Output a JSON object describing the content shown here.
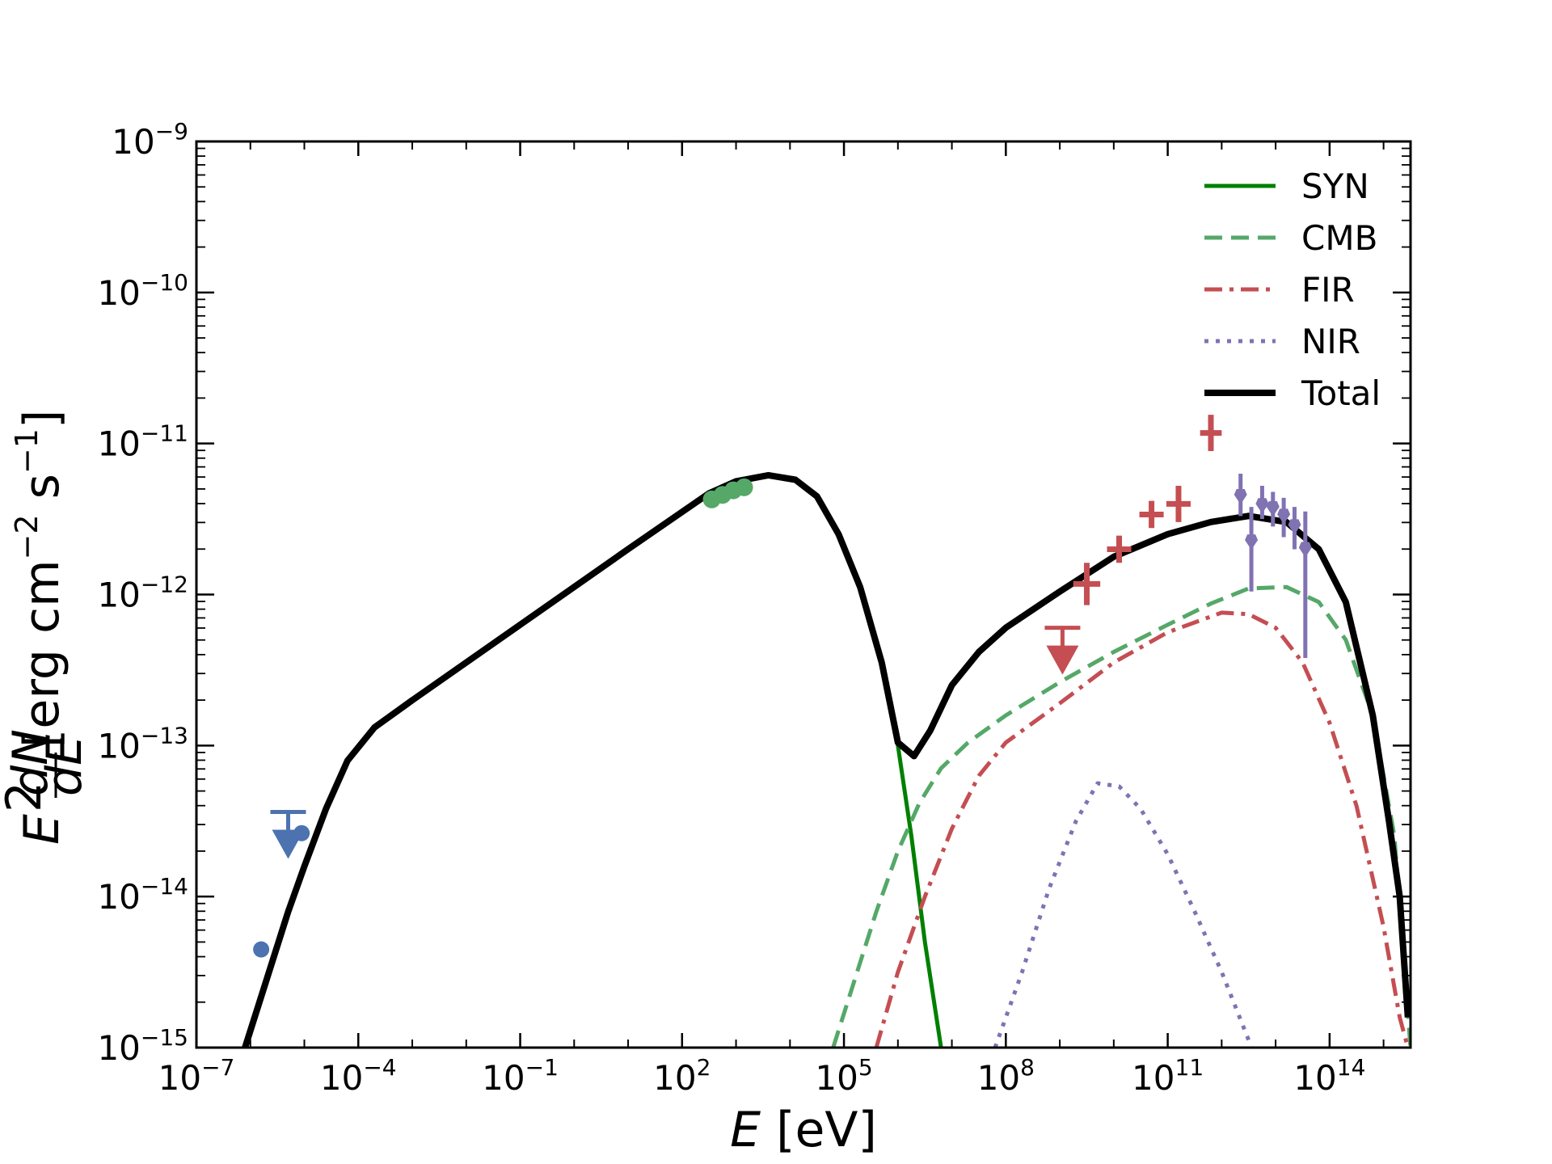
{
  "chart_data": {
    "type": "line",
    "title": "",
    "xlabel": "E [eV]",
    "xlabel_italic": "E",
    "xlabel_rest": " [eV]",
    "ylabel": "E^2 dN/dE [erg cm^-2 s^-1]",
    "ylabel_rest": " [erg cm",
    "ylabel_rest2": " s",
    "ylabel_rest3": "]",
    "ylabel_exp": "−2",
    "ylabel_exp2": "−1",
    "ylabel_E": "E",
    "ylabel_sq": "2",
    "ylabel_num": "dN",
    "ylabel_den": "dE",
    "xscale": "log",
    "yscale": "log",
    "xlim_log10": [
      -7,
      15.5
    ],
    "ylim_log10": [
      -15,
      -9
    ],
    "x_ticks": [
      {
        "base": "10",
        "exp": "−7",
        "log": -7
      },
      {
        "base": "10",
        "exp": "−4",
        "log": -4
      },
      {
        "base": "10",
        "exp": "−1",
        "log": -1
      },
      {
        "base": "10",
        "exp": "2",
        "log": 2
      },
      {
        "base": "10",
        "exp": "5",
        "log": 5
      },
      {
        "base": "10",
        "exp": "8",
        "log": 8
      },
      {
        "base": "10",
        "exp": "11",
        "log": 11
      },
      {
        "base": "10",
        "exp": "14",
        "log": 14
      }
    ],
    "y_ticks": [
      {
        "base": "10",
        "exp": "−9",
        "log": -9
      },
      {
        "base": "10",
        "exp": "−10",
        "log": -10
      },
      {
        "base": "10",
        "exp": "−11",
        "log": -11
      },
      {
        "base": "10",
        "exp": "−12",
        "log": -12
      },
      {
        "base": "10",
        "exp": "−13",
        "log": -13
      },
      {
        "base": "10",
        "exp": "−14",
        "log": -14
      },
      {
        "base": "10",
        "exp": "−15",
        "log": -15
      }
    ],
    "legend_position": "top-right",
    "series": [
      {
        "name": "SYN",
        "color": "#008000",
        "style": "solid",
        "points_log10": [
          [
            -6.1,
            -15
          ],
          [
            -5.7,
            -14.55
          ],
          [
            -5.3,
            -14.1
          ],
          [
            -5,
            -13.8
          ],
          [
            -4.6,
            -13.42
          ],
          [
            -4.2,
            -13.1
          ],
          [
            -3.7,
            -12.88
          ],
          [
            -3,
            -12.7
          ],
          [
            -1,
            -12.2
          ],
          [
            1,
            -11.7
          ],
          [
            2.5,
            -11.33
          ],
          [
            3,
            -11.25
          ],
          [
            3.6,
            -11.21
          ],
          [
            4.1,
            -11.24
          ],
          [
            4.5,
            -11.35
          ],
          [
            4.9,
            -11.6
          ],
          [
            5.3,
            -11.95
          ],
          [
            5.7,
            -12.45
          ],
          [
            6,
            -13
          ],
          [
            6.25,
            -13.6
          ],
          [
            6.5,
            -14.3
          ],
          [
            6.8,
            -15
          ]
        ]
      },
      {
        "name": "CMB",
        "color": "#55a868",
        "style": "dashed",
        "points_log10": [
          [
            4.8,
            -15
          ],
          [
            5.2,
            -14.55
          ],
          [
            5.6,
            -14.1
          ],
          [
            6,
            -13.7
          ],
          [
            6.4,
            -13.38
          ],
          [
            6.8,
            -13.15
          ],
          [
            7.3,
            -12.98
          ],
          [
            8,
            -12.8
          ],
          [
            9,
            -12.58
          ],
          [
            10,
            -12.38
          ],
          [
            11,
            -12.2
          ],
          [
            11.8,
            -12.06
          ],
          [
            12.5,
            -11.96
          ],
          [
            13.2,
            -11.95
          ],
          [
            13.8,
            -12.05
          ],
          [
            14.3,
            -12.3
          ],
          [
            14.8,
            -12.8
          ],
          [
            15.2,
            -13.6
          ],
          [
            15.5,
            -15
          ]
        ]
      },
      {
        "name": "FIR",
        "color": "#c44e52",
        "style": "dashdot",
        "points_log10": [
          [
            5.6,
            -15
          ],
          [
            6,
            -14.5
          ],
          [
            6.5,
            -14.0
          ],
          [
            7,
            -13.55
          ],
          [
            7.5,
            -13.2
          ],
          [
            8,
            -12.98
          ],
          [
            9,
            -12.72
          ],
          [
            10,
            -12.45
          ],
          [
            11,
            -12.25
          ],
          [
            12,
            -12.12
          ],
          [
            12.5,
            -12.13
          ],
          [
            13,
            -12.22
          ],
          [
            13.5,
            -12.45
          ],
          [
            14,
            -12.85
          ],
          [
            14.5,
            -13.4
          ],
          [
            15,
            -14.2
          ],
          [
            15.3,
            -14.8
          ],
          [
            15.45,
            -15
          ]
        ]
      },
      {
        "name": "NIR",
        "color": "#8172b2",
        "style": "dotted",
        "points_log10": [
          [
            7.8,
            -15
          ],
          [
            8.3,
            -14.5
          ],
          [
            8.8,
            -13.95
          ],
          [
            9.3,
            -13.5
          ],
          [
            9.7,
            -13.25
          ],
          [
            10.1,
            -13.27
          ],
          [
            10.5,
            -13.42
          ],
          [
            11,
            -13.72
          ],
          [
            11.5,
            -14.1
          ],
          [
            12,
            -14.5
          ],
          [
            12.5,
            -14.95
          ],
          [
            12.55,
            -15
          ]
        ]
      },
      {
        "name": "Total",
        "color": "#000000",
        "style": "solid",
        "points_log10": [
          [
            -6.1,
            -15
          ],
          [
            -5.7,
            -14.55
          ],
          [
            -5.3,
            -14.1
          ],
          [
            -5,
            -13.8
          ],
          [
            -4.6,
            -13.42
          ],
          [
            -4.2,
            -13.1
          ],
          [
            -3.7,
            -12.88
          ],
          [
            -3,
            -12.7
          ],
          [
            -1,
            -12.2
          ],
          [
            1,
            -11.7
          ],
          [
            2.5,
            -11.33
          ],
          [
            3,
            -11.25
          ],
          [
            3.6,
            -11.21
          ],
          [
            4.1,
            -11.24
          ],
          [
            4.5,
            -11.35
          ],
          [
            4.9,
            -11.6
          ],
          [
            5.3,
            -11.95
          ],
          [
            5.7,
            -12.45
          ],
          [
            6,
            -12.98
          ],
          [
            6.3,
            -13.07
          ],
          [
            6.6,
            -12.9
          ],
          [
            7,
            -12.6
          ],
          [
            7.5,
            -12.38
          ],
          [
            8,
            -12.22
          ],
          [
            9,
            -11.98
          ],
          [
            10,
            -11.75
          ],
          [
            11,
            -11.6
          ],
          [
            11.8,
            -11.52
          ],
          [
            12.5,
            -11.48
          ],
          [
            13.2,
            -11.52
          ],
          [
            13.8,
            -11.7
          ],
          [
            14.3,
            -12.05
          ],
          [
            14.8,
            -12.8
          ],
          [
            15.1,
            -13.5
          ],
          [
            15.3,
            -14
          ],
          [
            15.45,
            -14.8
          ]
        ]
      }
    ],
    "data_points": [
      {
        "name": "radio",
        "color": "#4c72b0",
        "type": "point",
        "points_log10": [
          [
            -5.8,
            -14.35
          ],
          [
            -5.05,
            -13.58
          ]
        ]
      },
      {
        "name": "radio-upper-limit",
        "color": "#4c72b0",
        "type": "upper_limit",
        "points_log10": [
          [
            -5.3,
            -13.44
          ]
        ]
      },
      {
        "name": "xray",
        "color": "#55a868",
        "type": "point",
        "points_log10": [
          [
            2.55,
            -11.37
          ],
          [
            2.75,
            -11.34
          ],
          [
            2.95,
            -11.31
          ],
          [
            3.15,
            -11.29
          ]
        ]
      },
      {
        "name": "fermi",
        "color": "#c44e52",
        "type": "error_cross",
        "points": [
          {
            "x": 9.5,
            "y": -11.93,
            "xerr": 0.5,
            "yerr": 0.14
          },
          {
            "x": 10.1,
            "y": -11.7,
            "xerr": 0.45,
            "yerr": 0.09
          },
          {
            "x": 10.7,
            "y": -11.47,
            "xerr": 0.45,
            "yerr": 0.09
          },
          {
            "x": 11.2,
            "y": -11.4,
            "xerr": 0.45,
            "yerr": 0.12
          },
          {
            "x": 11.8,
            "y": -10.93,
            "xerr": 0.4,
            "yerr": 0.12
          }
        ]
      },
      {
        "name": "fermi-upper-limit",
        "color": "#c44e52",
        "type": "upper_limit",
        "points_log10": [
          [
            9.05,
            -12.22
          ]
        ]
      },
      {
        "name": "hess",
        "color": "#8172b2",
        "type": "error_bar",
        "points": [
          {
            "x": 12.35,
            "y": -11.35,
            "ylo": -11.48,
            "yhi": -11.2
          },
          {
            "x": 12.55,
            "y": -11.65,
            "ylo": -11.98,
            "yhi": -11.42
          },
          {
            "x": 12.75,
            "y": -11.41,
            "ylo": -11.5,
            "yhi": -11.28
          },
          {
            "x": 12.95,
            "y": -11.43,
            "ylo": -11.55,
            "yhi": -11.32
          },
          {
            "x": 13.15,
            "y": -11.48,
            "ylo": -11.62,
            "yhi": -11.36
          },
          {
            "x": 13.35,
            "y": -11.55,
            "ylo": -11.7,
            "yhi": -11.42
          },
          {
            "x": 13.55,
            "y": -11.7,
            "ylo": -12.42,
            "yhi": -11.45
          }
        ]
      }
    ]
  }
}
